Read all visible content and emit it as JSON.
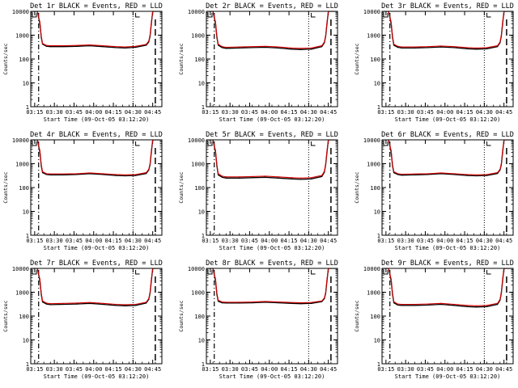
{
  "x_label": "Start Time (09-Oct-05 03:12:20)",
  "y_label": "Counts/sec",
  "x_tick_labels": [
    "03:15",
    "03:30",
    "03:45",
    "04:00",
    "04:15",
    "04:30",
    "04:45"
  ],
  "y_tick_labels": [
    "1",
    "10",
    "100",
    "1000",
    "10000"
  ],
  "colors": {
    "events": "#000000",
    "lld": "#d40000",
    "axes": "#000000"
  },
  "chart_data": [
    {
      "type": "line",
      "title": "Det 1r BLACK = Events, RED = LLD",
      "xlabel": "Start Time (09-Oct-05 03:12:20)",
      "ylabel": "Counts/sec",
      "x_unit": "minutes since 03:12:20",
      "xlim": [
        0,
        100
      ],
      "ylim": [
        1,
        10000
      ],
      "y_scale": "log",
      "x": [
        0,
        5,
        7,
        8,
        9,
        12,
        15,
        25,
        35,
        45,
        55,
        65,
        72,
        80,
        88,
        90,
        91,
        92,
        93,
        95,
        100
      ],
      "series": [
        {
          "name": "Events",
          "values": [
            10000,
            10000,
            3000,
            800,
            420,
            340,
            330,
            330,
            340,
            360,
            330,
            300,
            290,
            310,
            380,
            520,
            900,
            3000,
            10000,
            10000,
            10000
          ]
        },
        {
          "name": "LLD",
          "values": [
            10000,
            10000,
            3500,
            900,
            450,
            370,
            360,
            360,
            370,
            390,
            360,
            330,
            320,
            340,
            410,
            560,
            1000,
            3500,
            10000,
            10000,
            10000
          ]
        }
      ]
    },
    {
      "type": "line",
      "title": "Det 2r BLACK = Events, RED = LLD",
      "xlabel": "Start Time (09-Oct-05 03:12:20)",
      "ylabel": "Counts/sec",
      "x_unit": "minutes since 03:12:20",
      "xlim": [
        0,
        100
      ],
      "ylim": [
        1,
        10000
      ],
      "y_scale": "log",
      "x": [
        0,
        5,
        7,
        8,
        9,
        12,
        15,
        25,
        35,
        45,
        55,
        65,
        72,
        80,
        88,
        90,
        91,
        92,
        93,
        95,
        100
      ],
      "series": [
        {
          "name": "Events",
          "values": [
            10000,
            10000,
            3000,
            800,
            380,
            300,
            280,
            290,
            300,
            310,
            290,
            260,
            250,
            260,
            330,
            480,
            900,
            3000,
            10000,
            10000,
            10000
          ]
        },
        {
          "name": "LLD",
          "values": [
            10000,
            10000,
            3500,
            900,
            420,
            330,
            310,
            320,
            330,
            340,
            320,
            290,
            280,
            290,
            360,
            520,
            1000,
            3500,
            10000,
            10000,
            10000
          ]
        }
      ]
    },
    {
      "type": "line",
      "title": "Det 3r BLACK = Events, RED = LLD",
      "xlabel": "Start Time (09-Oct-05 03:12:20)",
      "ylabel": "Counts/sec",
      "x_unit": "minutes since 03:12:20",
      "xlim": [
        0,
        100
      ],
      "ylim": [
        1,
        10000
      ],
      "y_scale": "log",
      "x": [
        0,
        5,
        7,
        8,
        9,
        12,
        15,
        25,
        35,
        45,
        55,
        65,
        72,
        80,
        88,
        90,
        91,
        92,
        93,
        95,
        100
      ],
      "series": [
        {
          "name": "Events",
          "values": [
            10000,
            10000,
            3000,
            800,
            380,
            310,
            290,
            290,
            300,
            320,
            300,
            270,
            260,
            270,
            330,
            480,
            900,
            3000,
            10000,
            10000,
            10000
          ]
        },
        {
          "name": "LLD",
          "values": [
            10000,
            10000,
            3500,
            900,
            420,
            340,
            320,
            320,
            330,
            350,
            330,
            300,
            290,
            300,
            360,
            520,
            1000,
            3500,
            10000,
            10000,
            10000
          ]
        }
      ]
    },
    {
      "type": "line",
      "title": "Det 4r BLACK = Events, RED = LLD",
      "xlabel": "Start Time (09-Oct-05 03:12:20)",
      "ylabel": "Counts/sec",
      "x_unit": "minutes since 03:12:20",
      "xlim": [
        0,
        100
      ],
      "ylim": [
        1,
        10000
      ],
      "y_scale": "log",
      "x": [
        0,
        5,
        7,
        8,
        9,
        12,
        15,
        25,
        35,
        45,
        55,
        65,
        72,
        80,
        88,
        90,
        91,
        92,
        93,
        95,
        100
      ],
      "series": [
        {
          "name": "Events",
          "values": [
            10000,
            10000,
            3000,
            800,
            420,
            350,
            340,
            340,
            350,
            380,
            350,
            320,
            310,
            320,
            390,
            540,
            900,
            3000,
            10000,
            10000,
            10000
          ]
        },
        {
          "name": "LLD",
          "values": [
            10000,
            10000,
            3500,
            900,
            460,
            380,
            370,
            370,
            380,
            410,
            380,
            350,
            340,
            350,
            420,
            580,
            1000,
            3500,
            10000,
            10000,
            10000
          ]
        }
      ]
    },
    {
      "type": "line",
      "title": "Det 5r BLACK = Events, RED = LLD",
      "xlabel": "Start Time (09-Oct-05 03:12:20)",
      "ylabel": "Counts/sec",
      "x_unit": "minutes since 03:12:20",
      "xlim": [
        0,
        100
      ],
      "ylim": [
        1,
        10000
      ],
      "y_scale": "log",
      "x": [
        0,
        5,
        7,
        8,
        9,
        12,
        15,
        25,
        35,
        45,
        55,
        65,
        72,
        80,
        88,
        90,
        91,
        92,
        93,
        95,
        100
      ],
      "series": [
        {
          "name": "Events",
          "values": [
            10000,
            10000,
            3000,
            800,
            340,
            270,
            250,
            250,
            260,
            270,
            250,
            230,
            220,
            230,
            290,
            440,
            900,
            3000,
            10000,
            10000,
            10000
          ]
        },
        {
          "name": "LLD",
          "values": [
            10000,
            10000,
            3500,
            900,
            380,
            300,
            280,
            280,
            290,
            300,
            280,
            260,
            250,
            260,
            320,
            480,
            1000,
            3500,
            10000,
            10000,
            10000
          ]
        }
      ]
    },
    {
      "type": "line",
      "title": "Det 6r BLACK = Events, RED = LLD",
      "xlabel": "Start Time (09-Oct-05 03:12:20)",
      "ylabel": "Counts/sec",
      "x_unit": "minutes since 03:12:20",
      "xlim": [
        0,
        100
      ],
      "ylim": [
        1,
        10000
      ],
      "y_scale": "log",
      "x": [
        0,
        5,
        7,
        8,
        9,
        12,
        15,
        25,
        35,
        45,
        55,
        65,
        72,
        80,
        88,
        90,
        91,
        92,
        93,
        95,
        100
      ],
      "series": [
        {
          "name": "Events",
          "values": [
            10000,
            10000,
            3000,
            800,
            420,
            350,
            330,
            340,
            350,
            380,
            350,
            320,
            310,
            320,
            390,
            540,
            900,
            3000,
            10000,
            10000,
            10000
          ]
        },
        {
          "name": "LLD",
          "values": [
            10000,
            10000,
            3500,
            900,
            460,
            380,
            360,
            370,
            380,
            410,
            380,
            350,
            340,
            350,
            420,
            580,
            1000,
            3500,
            10000,
            10000,
            10000
          ]
        }
      ]
    },
    {
      "type": "line",
      "title": "Det 7r BLACK = Events, RED = LLD",
      "xlabel": "Start Time (09-Oct-05 03:12:20)",
      "ylabel": "Counts/sec",
      "x_unit": "minutes since 03:12:20",
      "xlim": [
        0,
        100
      ],
      "ylim": [
        1,
        10000
      ],
      "y_scale": "log",
      "x": [
        0,
        5,
        7,
        8,
        9,
        12,
        15,
        25,
        35,
        45,
        55,
        65,
        72,
        80,
        88,
        90,
        91,
        92,
        93,
        95,
        100
      ],
      "series": [
        {
          "name": "Events",
          "values": [
            10000,
            10000,
            3000,
            800,
            390,
            320,
            300,
            310,
            320,
            340,
            310,
            280,
            270,
            280,
            350,
            500,
            900,
            3000,
            10000,
            10000,
            10000
          ]
        },
        {
          "name": "LLD",
          "values": [
            10000,
            10000,
            3500,
            900,
            430,
            350,
            330,
            340,
            350,
            370,
            340,
            310,
            300,
            310,
            380,
            540,
            1000,
            3500,
            10000,
            10000,
            10000
          ]
        }
      ]
    },
    {
      "type": "line",
      "title": "Det 8r BLACK = Events, RED = LLD",
      "xlabel": "Start Time (09-Oct-05 03:12:20)",
      "ylabel": "Counts/sec",
      "x_unit": "minutes since 03:12:20",
      "xlim": [
        0,
        100
      ],
      "ylim": [
        1,
        10000
      ],
      "y_scale": "log",
      "x": [
        0,
        5,
        7,
        8,
        9,
        12,
        15,
        25,
        35,
        45,
        55,
        65,
        72,
        80,
        88,
        90,
        91,
        92,
        93,
        95,
        100
      ],
      "series": [
        {
          "name": "Events",
          "values": [
            10000,
            10000,
            3000,
            800,
            420,
            360,
            350,
            350,
            360,
            380,
            360,
            340,
            330,
            340,
            400,
            540,
            900,
            3000,
            10000,
            10000,
            10000
          ]
        },
        {
          "name": "LLD",
          "values": [
            10000,
            10000,
            3500,
            900,
            460,
            390,
            380,
            380,
            390,
            410,
            390,
            370,
            360,
            370,
            430,
            580,
            1000,
            3500,
            10000,
            10000,
            10000
          ]
        }
      ]
    },
    {
      "type": "line",
      "title": "Det 9r BLACK = Events, RED = LLD",
      "xlabel": "Start Time (09-Oct-05 03:12:20)",
      "ylabel": "Counts/sec",
      "x_unit": "minutes since 03:12:20",
      "xlim": [
        0,
        100
      ],
      "ylim": [
        1,
        10000
      ],
      "y_scale": "log",
      "x": [
        0,
        5,
        7,
        8,
        9,
        12,
        15,
        25,
        35,
        45,
        55,
        65,
        72,
        80,
        88,
        90,
        91,
        92,
        93,
        95,
        100
      ],
      "series": [
        {
          "name": "Events",
          "values": [
            10000,
            10000,
            3000,
            800,
            360,
            290,
            280,
            280,
            290,
            310,
            280,
            250,
            240,
            250,
            310,
            460,
            900,
            3000,
            10000,
            10000,
            10000
          ]
        },
        {
          "name": "LLD",
          "values": [
            10000,
            10000,
            3500,
            900,
            400,
            320,
            310,
            310,
            320,
            340,
            310,
            280,
            270,
            280,
            340,
            500,
            1000,
            3500,
            10000,
            10000,
            10000
          ]
        }
      ]
    }
  ]
}
